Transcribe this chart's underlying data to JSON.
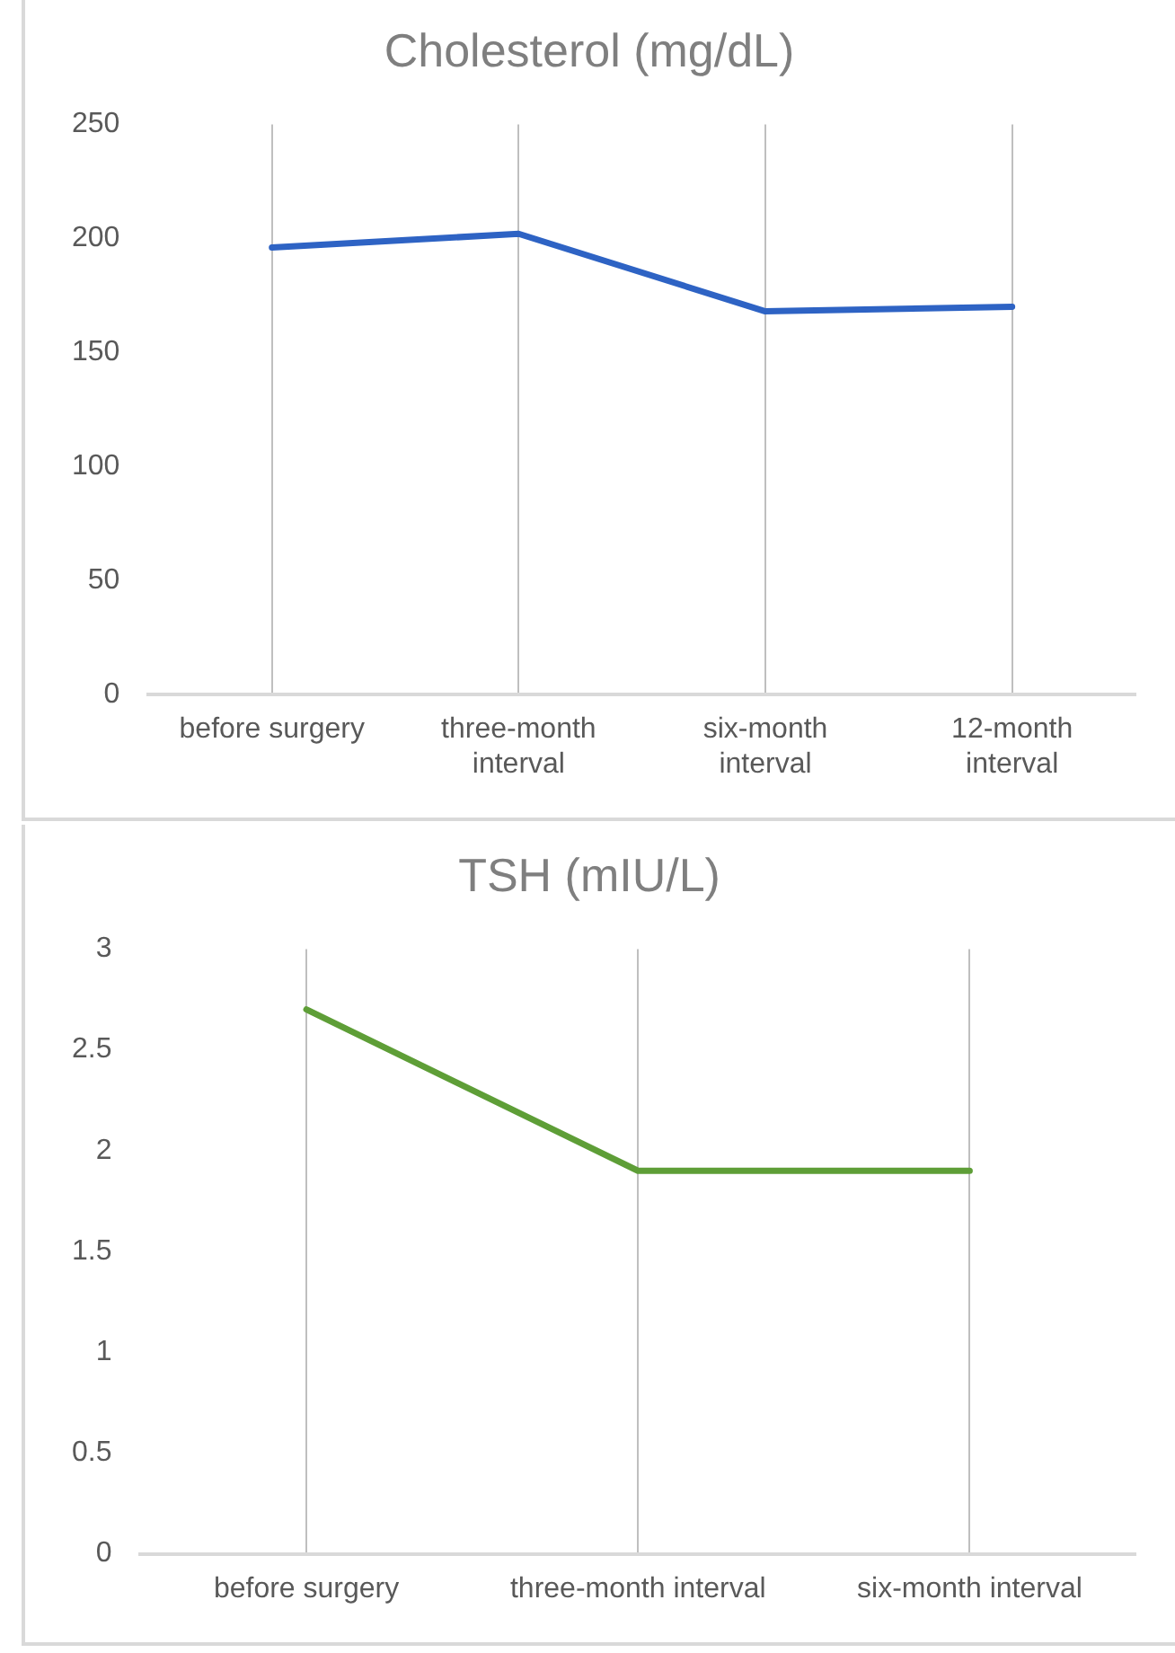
{
  "chart_data": [
    {
      "type": "line",
      "title": "Cholesterol (mg/dL)",
      "categories": [
        "before surgery",
        "three-month interval",
        "six-month interval",
        "12-month interval"
      ],
      "series": [
        {
          "color": "#2e63c4",
          "values": [
            196,
            202,
            168,
            170
          ]
        }
      ],
      "ylim": [
        0,
        250
      ],
      "yticks": [
        0,
        50,
        100,
        150,
        200,
        250
      ],
      "grid": "x",
      "legend": false
    },
    {
      "type": "line",
      "title": "TSH (mIU/L)",
      "categories": [
        "before surgery",
        "three-month interval",
        "six-month interval"
      ],
      "series": [
        {
          "color": "#5e9e37",
          "values": [
            2.7,
            1.9,
            1.9
          ]
        }
      ],
      "ylim": [
        0,
        3
      ],
      "yticks": [
        0,
        0.5,
        1,
        1.5,
        2,
        2.5,
        3
      ],
      "grid": "x",
      "legend": false
    }
  ]
}
